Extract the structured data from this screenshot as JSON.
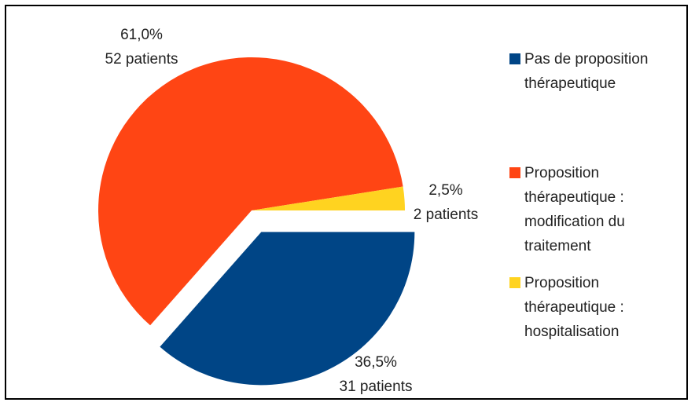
{
  "chart_data": {
    "type": "pie",
    "categories": [
      "Pas de proposition thérapeutique",
      "Proposition thérapeutique : modification du traitement",
      "Proposition thérapeutique : hospitalisation"
    ],
    "values": [
      36.5,
      61.0,
      2.5
    ],
    "value_labels": [
      "36,5%",
      "61,0%",
      "2,5%"
    ],
    "counts": [
      31,
      52,
      2
    ],
    "count_labels": [
      "31 patients",
      "52 patients",
      "2 patients"
    ],
    "colors": [
      "#004586",
      "#ff4514",
      "#ffd320"
    ],
    "explode": [
      true,
      false,
      false
    ],
    "legend": "right"
  }
}
